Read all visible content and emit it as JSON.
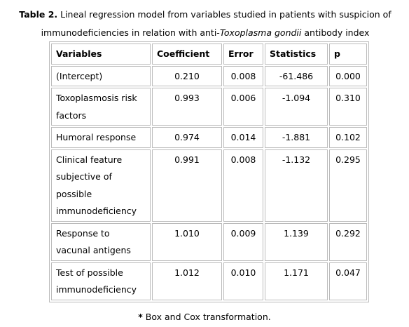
{
  "caption": {
    "label": "Table 2.",
    "text_before": "Lineal regression model from variables studied in patients with suspicion of immunodeficiencies in relation with anti-",
    "text_italic": "Toxoplasma gondii",
    "text_after": "antibody index"
  },
  "table": {
    "header": [
      "Variables",
      "Coefficient",
      "Error",
      "Statistics",
      "p"
    ],
    "rows": [
      [
        "(Intercept)",
        "0.210",
        "0.008",
        "-61.486",
        "0.000"
      ],
      [
        "Toxoplasmosis risk factors",
        "0.993",
        "0.006",
        "-1.094",
        "0.310"
      ],
      [
        "Humoral response",
        "0.974",
        "0.014",
        "-1.881",
        "0.102"
      ],
      [
        "Clinical feature subjective of possible immunodeficiency",
        "0.991",
        "0.008",
        "-1.132",
        "0.295"
      ],
      [
        "Response to vacunal antigens",
        "1.010",
        "0.009",
        "1.139",
        "0.292"
      ],
      [
        "Test of possible immunodeficiency",
        "1.012",
        "0.010",
        "1.171",
        "0.047"
      ]
    ]
  },
  "footnote": {
    "marker": "*",
    "text": "Box and Cox transformation."
  }
}
